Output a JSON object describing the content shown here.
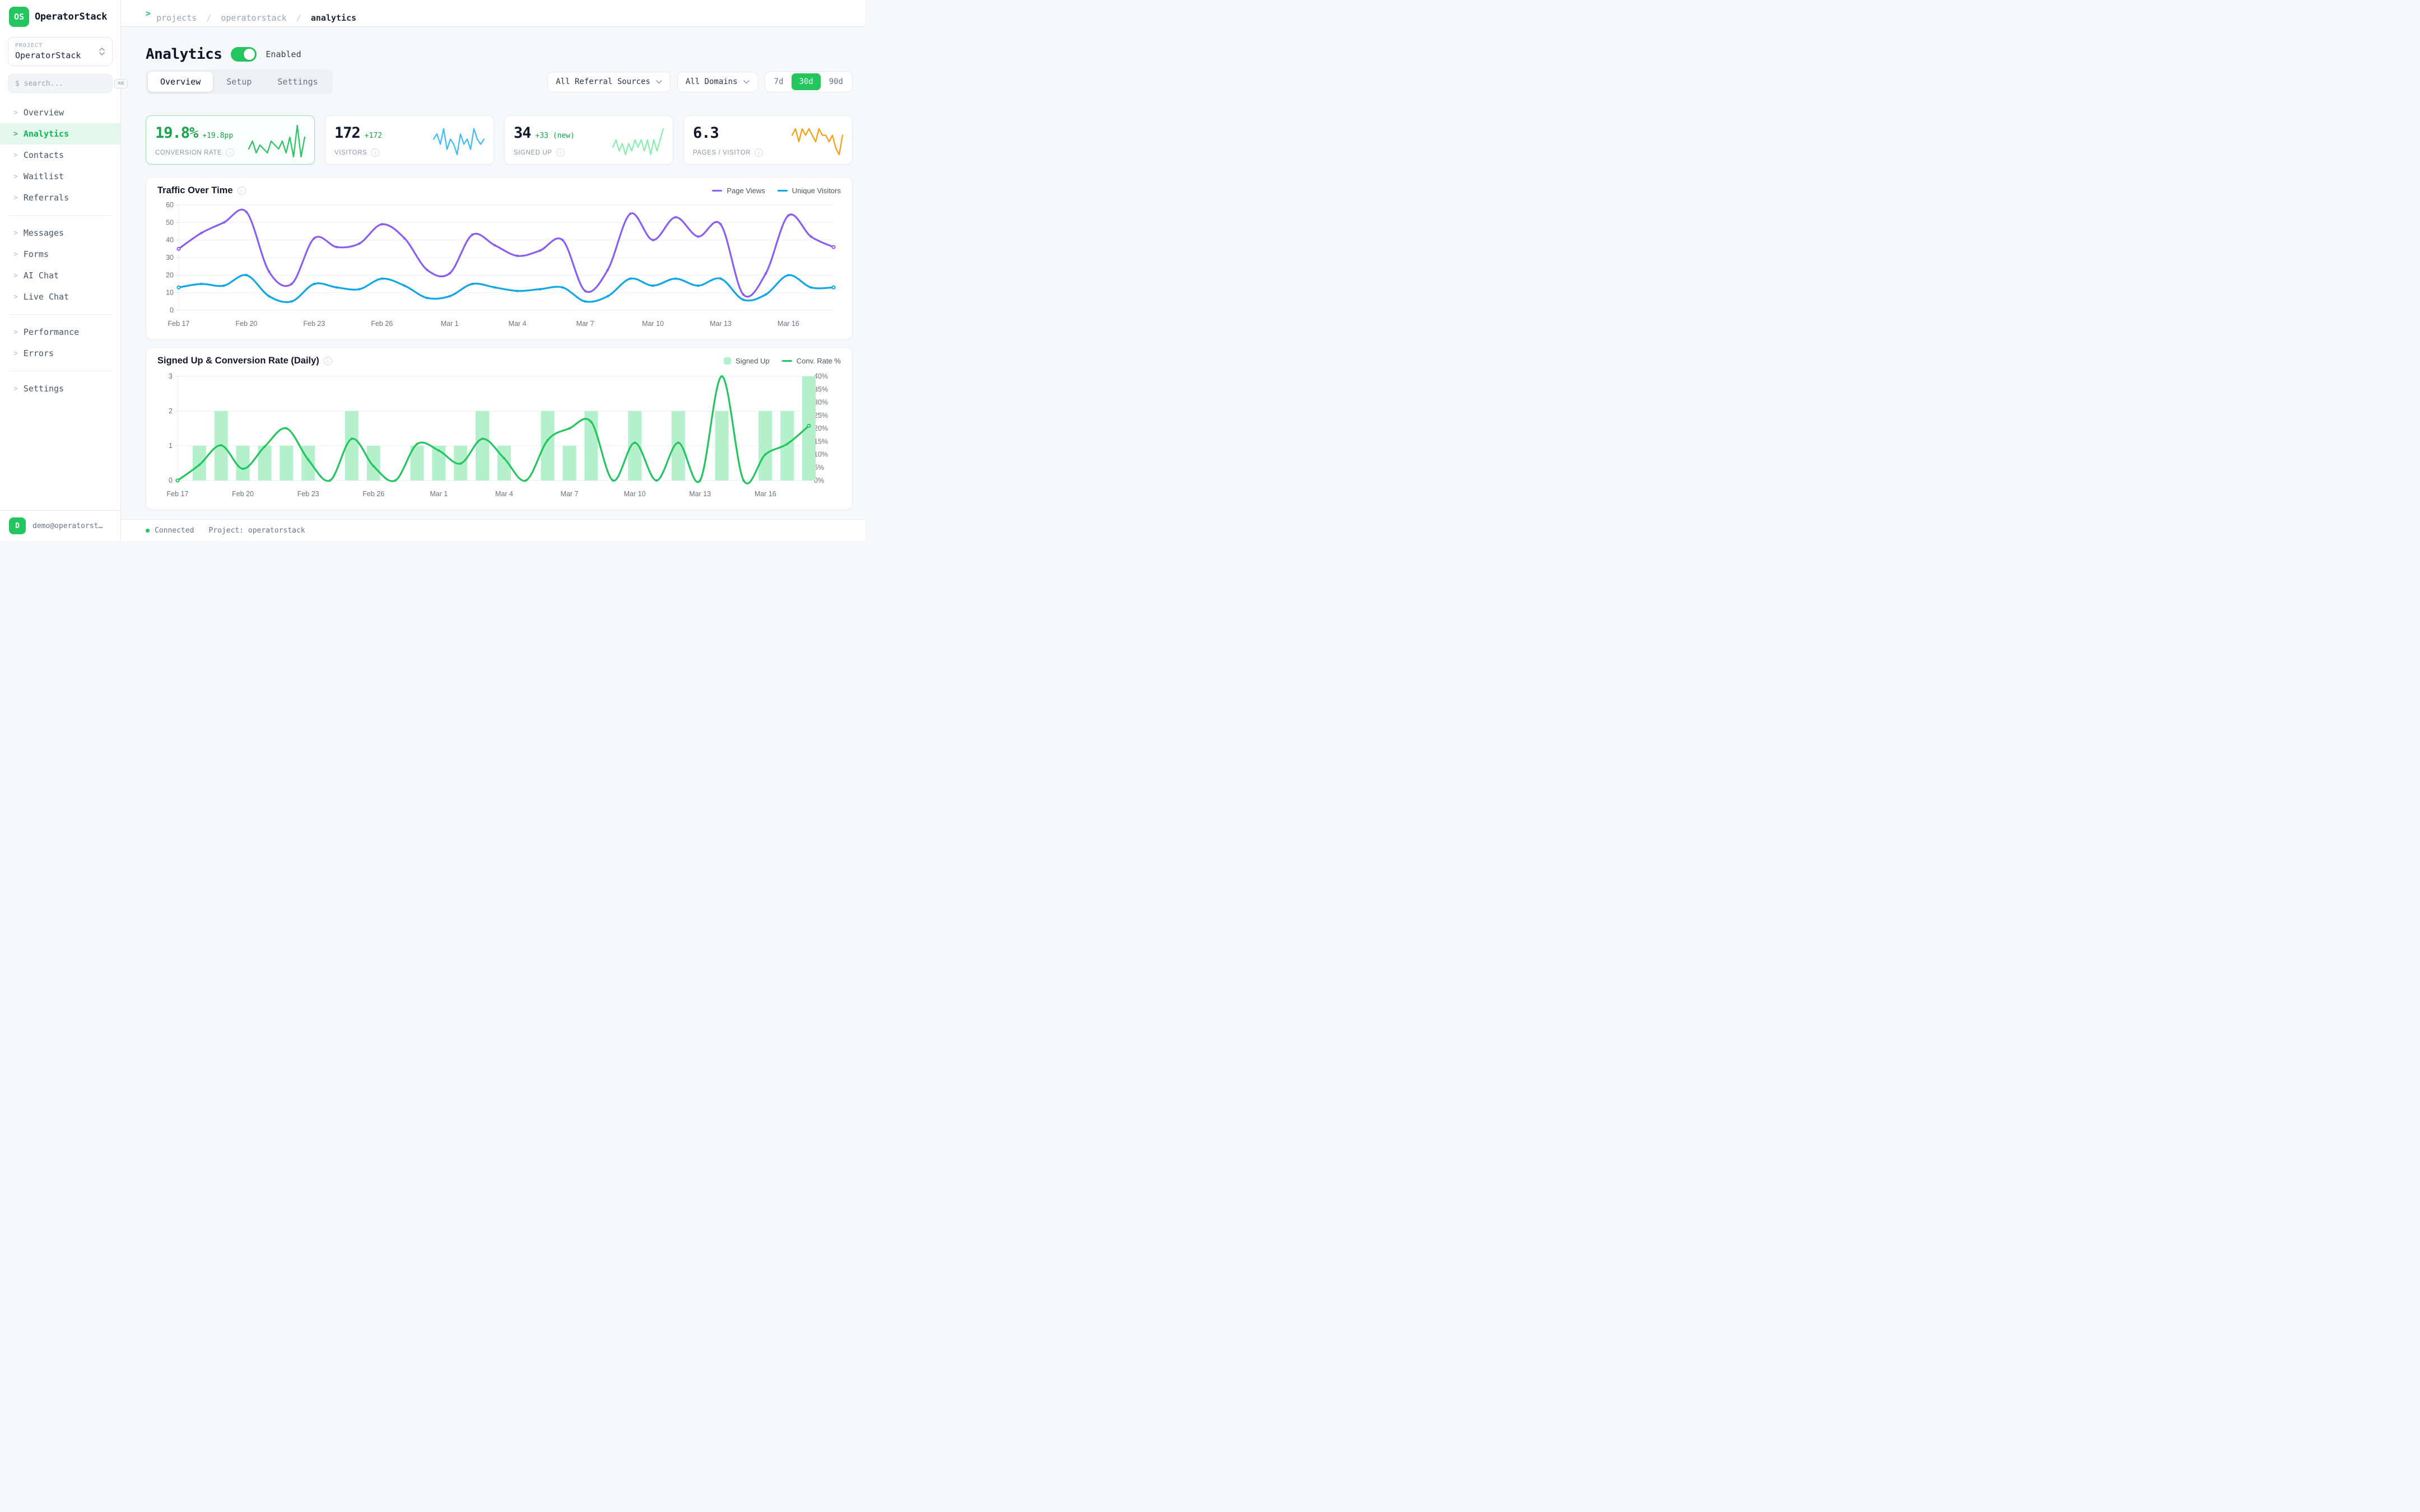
{
  "app": {
    "name": "OperatorStack",
    "logo_initials": "OS"
  },
  "sidebar": {
    "project_label": "PROJECT",
    "project_name": "OperatorStack",
    "search_placeholder": "$ search...",
    "search_shortcut": "⌘K",
    "item_prefix": ">",
    "nav_groups": [
      {
        "items": [
          {
            "label": "Overview",
            "active": false
          },
          {
            "label": "Analytics",
            "active": true
          },
          {
            "label": "Contacts",
            "active": false
          },
          {
            "label": "Waitlist",
            "active": false
          },
          {
            "label": "Referrals",
            "active": false
          }
        ]
      },
      {
        "items": [
          {
            "label": "Messages",
            "active": false
          },
          {
            "label": "Forms",
            "active": false
          },
          {
            "label": "AI Chat",
            "active": false
          },
          {
            "label": "Live Chat",
            "active": false
          }
        ]
      },
      {
        "items": [
          {
            "label": "Performance",
            "active": false
          },
          {
            "label": "Errors",
            "active": false
          }
        ]
      },
      {
        "items": [
          {
            "label": "Settings",
            "active": false
          }
        ]
      }
    ],
    "user": {
      "avatar_initial": "D",
      "email": "demo@operatorsta…"
    }
  },
  "breadcrumb": {
    "prefix": ">",
    "items": [
      "projects",
      "operatorstack"
    ],
    "separator": "/",
    "current": "analytics"
  },
  "header": {
    "title": "Analytics",
    "toggle_on": true,
    "toggle_label": "Enabled"
  },
  "tabs": [
    {
      "label": "Overview",
      "active": true
    },
    {
      "label": "Setup",
      "active": false
    },
    {
      "label": "Settings",
      "active": false
    }
  ],
  "filters": {
    "referral_sources": "All Referral Sources",
    "domains": "All Domains",
    "ranges": [
      "7d",
      "30d",
      "90d"
    ],
    "active_range": "30d"
  },
  "kpis": [
    {
      "value": "19.8%",
      "delta": "+19.8pp",
      "label": "CONVERSION RATE",
      "highlight": true,
      "spark_color": "#22c55e",
      "spark": [
        4,
        6,
        3,
        5,
        4,
        3,
        6,
        5,
        4,
        6,
        3,
        7,
        2,
        10,
        2,
        7
      ]
    },
    {
      "value": "172",
      "delta": "+172",
      "label": "VISITORS",
      "highlight": false,
      "spark_color": "#38bdf8",
      "spark": [
        6,
        7,
        5,
        8,
        4,
        6,
        5,
        3,
        7,
        5,
        6,
        4,
        8,
        6,
        5,
        6
      ]
    },
    {
      "value": "34",
      "delta": "+33 (new)",
      "label": "SIGNED UP",
      "highlight": false,
      "spark_color": "#86efac",
      "spark": [
        4,
        6,
        3,
        5,
        2,
        5,
        3,
        6,
        4,
        6,
        3,
        6,
        2,
        6,
        3,
        6,
        9
      ]
    },
    {
      "value": "6.3",
      "delta": "",
      "label": "PAGES / VISITOR",
      "highlight": false,
      "spark_color": "#f59e0b",
      "spark": [
        6,
        7,
        5,
        7,
        6,
        7,
        6,
        5,
        7,
        6,
        6,
        5,
        6,
        4,
        3,
        6
      ]
    }
  ],
  "chart_data": [
    {
      "type": "line",
      "title": "Traffic Over Time",
      "x": [
        "Feb 17",
        "Feb 18",
        "Feb 19",
        "Feb 20",
        "Feb 21",
        "Feb 22",
        "Feb 23",
        "Feb 24",
        "Feb 25",
        "Feb 26",
        "Feb 27",
        "Feb 28",
        "Mar 1",
        "Mar 2",
        "Mar 3",
        "Mar 4",
        "Mar 5",
        "Mar 6",
        "Mar 7",
        "Mar 8",
        "Mar 9",
        "Mar 10",
        "Mar 11",
        "Mar 12",
        "Mar 13",
        "Mar 14",
        "Mar 15",
        "Mar 16",
        "Mar 17",
        "Mar 18"
      ],
      "tick_every": 3,
      "ylim": [
        0,
        60
      ],
      "yticks": [
        0,
        10,
        20,
        30,
        40,
        50,
        60
      ],
      "grid": "horizontal",
      "legend_position": "top-right",
      "series": [
        {
          "name": "Page Views",
          "color": "#8b5cf6",
          "values": [
            35,
            44,
            50,
            56,
            22,
            15,
            41,
            36,
            38,
            49,
            41,
            23,
            21,
            43,
            37,
            31,
            34,
            40,
            11,
            23,
            55,
            40,
            53,
            42,
            49,
            9,
            21,
            54,
            42,
            36
          ]
        },
        {
          "name": "Unique Visitors",
          "color": "#0ea5e9",
          "values": [
            13,
            15,
            14,
            20,
            8,
            5,
            15,
            13,
            12,
            18,
            14,
            7,
            8,
            15,
            13,
            11,
            12,
            13,
            5,
            8,
            18,
            14,
            18,
            14,
            18,
            6,
            9,
            20,
            13,
            13
          ]
        }
      ]
    },
    {
      "type": "bar+line",
      "title": "Signed Up & Conversion Rate (Daily)",
      "x": [
        "Feb 17",
        "Feb 18",
        "Feb 19",
        "Feb 20",
        "Feb 21",
        "Feb 22",
        "Feb 23",
        "Feb 24",
        "Feb 25",
        "Feb 26",
        "Feb 27",
        "Feb 28",
        "Mar 1",
        "Mar 2",
        "Mar 3",
        "Mar 4",
        "Mar 5",
        "Mar 6",
        "Mar 7",
        "Mar 8",
        "Mar 9",
        "Mar 10",
        "Mar 11",
        "Mar 12",
        "Mar 13",
        "Mar 14",
        "Mar 15",
        "Mar 16",
        "Mar 17",
        "Mar 18"
      ],
      "tick_every": 3,
      "left_ylim": [
        0,
        3
      ],
      "left_yticks": [
        0,
        1,
        2,
        3
      ],
      "right_ylim": [
        0,
        40
      ],
      "right_yticks": [
        0,
        5,
        10,
        15,
        20,
        25,
        30,
        35,
        40
      ],
      "right_tick_suffix": "%",
      "grid": "horizontal",
      "legend_position": "top-right",
      "bar_series": {
        "name": "Signed Up",
        "color": "#b4f0cc",
        "axis": "left",
        "values": [
          0,
          1,
          2,
          1,
          1,
          1,
          1,
          0,
          2,
          1,
          0,
          1,
          1,
          1,
          2,
          1,
          0,
          2,
          1,
          2,
          0,
          2,
          0,
          2,
          0,
          2,
          0,
          2,
          2,
          3
        ]
      },
      "line_series": {
        "name": "Conv. Rate %",
        "color": "#22c55e",
        "axis": "right",
        "values": [
          0,
          6,
          13.5,
          4.5,
          13,
          20,
          8,
          0,
          16,
          5.5,
          0,
          14,
          11.5,
          6.5,
          16,
          8.5,
          0,
          15.5,
          20,
          22.5,
          0,
          14.5,
          0,
          14.5,
          0,
          40,
          0,
          10,
          14,
          21
        ]
      }
    }
  ],
  "footer": {
    "status": "Connected",
    "project": "Project: operatorstack"
  }
}
